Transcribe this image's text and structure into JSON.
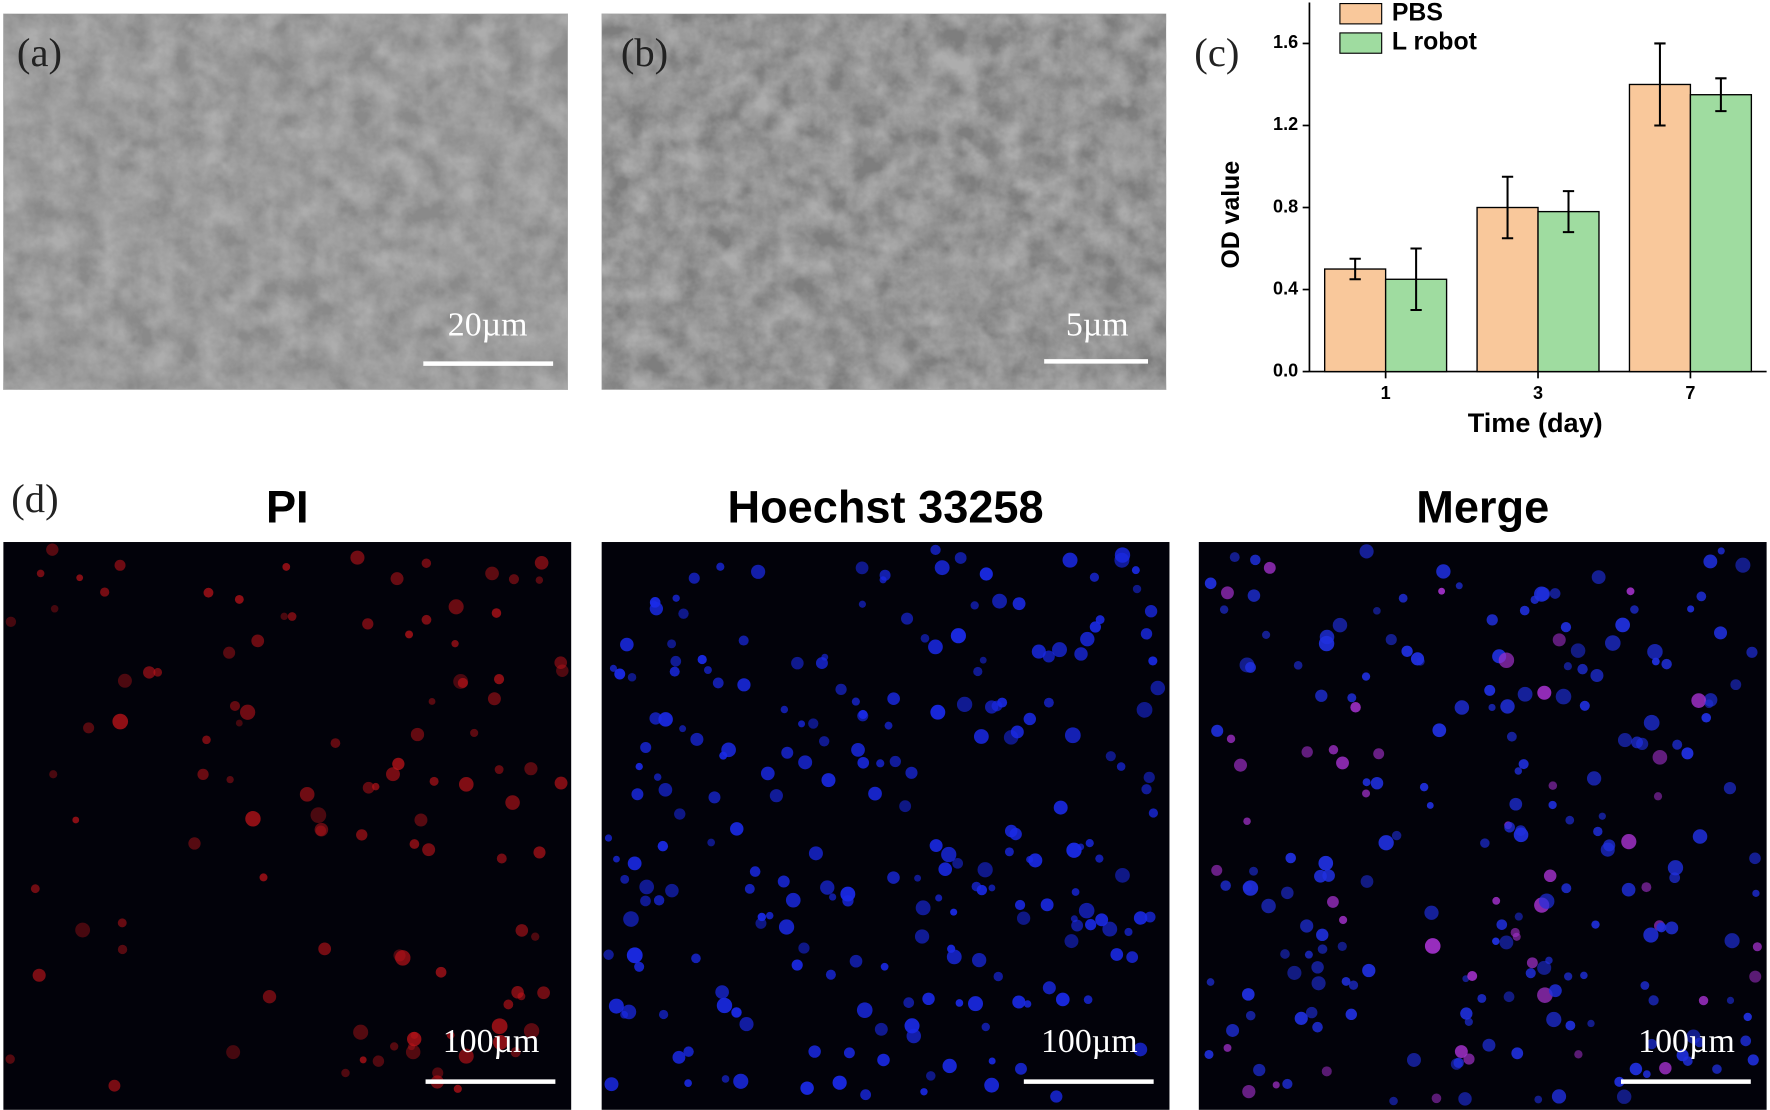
{
  "panels": {
    "a": {
      "label": "(a)",
      "scale_bar": "20µm"
    },
    "b": {
      "label": "(b)",
      "scale_bar": "5µm"
    },
    "c": {
      "label": "(c)"
    },
    "d": {
      "label": "(d)",
      "images": [
        {
          "title": "PI",
          "scale_bar": "100µm"
        },
        {
          "title": "Hoechst 33258",
          "scale_bar": "100µm"
        },
        {
          "title": "Merge",
          "scale_bar": "100µm"
        }
      ]
    }
  },
  "chart_data": {
    "type": "bar",
    "x_label": "Time (day)",
    "y_label": "OD value",
    "categories": [
      "1",
      "3",
      "7"
    ],
    "series": [
      {
        "name": "PBS",
        "color": "#f9c89b",
        "values": [
          0.5,
          0.8,
          1.4
        ],
        "errors": [
          0.05,
          0.15,
          0.2
        ]
      },
      {
        "name": "L robot",
        "color": "#9fdca0",
        "values": [
          0.45,
          0.78,
          1.35
        ],
        "errors": [
          0.15,
          0.1,
          0.08
        ]
      }
    ],
    "ylim": [
      0,
      1.8
    ],
    "yticks": [
      {
        "value": 0,
        "label": "0.0"
      },
      0.4,
      0.8,
      1.2,
      1.6
    ],
    "legend": "upper-left"
  }
}
